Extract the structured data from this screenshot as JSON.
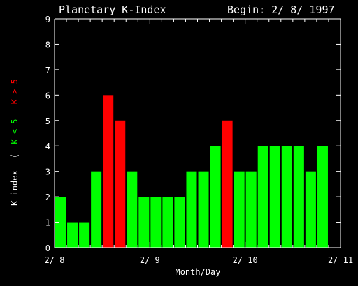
{
  "chart_data": {
    "type": "bar",
    "title": "Planetary K-Index",
    "begin_label": "Begin: 2/ 8/ 1997",
    "xlabel": "Month/Day",
    "ylabel": {
      "prefix": "K-index",
      "open": "(",
      "low": "K < 5",
      "high": "K > 5"
    },
    "ylim": [
      0,
      9
    ],
    "yticks": [
      "0",
      "1",
      "2",
      "3",
      "4",
      "5",
      "6",
      "7",
      "8",
      "9"
    ],
    "xlim": [
      0,
      24
    ],
    "xticks": [
      {
        "pos": 0,
        "label": "2/ 8"
      },
      {
        "pos": 8,
        "label": "2/ 9"
      },
      {
        "pos": 16,
        "label": "2/ 10"
      },
      {
        "pos": 24,
        "label": "2/ 11"
      }
    ],
    "values": [
      2,
      1,
      1,
      3,
      6,
      5,
      3,
      2,
      2,
      2,
      2,
      3,
      3,
      4,
      5,
      3,
      3,
      4,
      4,
      4,
      4,
      3,
      4
    ],
    "threshold": 5,
    "colors": {
      "low": "#00ff00",
      "high": "#ff0000",
      "axis": "#ffffff",
      "background": "#000000"
    }
  }
}
